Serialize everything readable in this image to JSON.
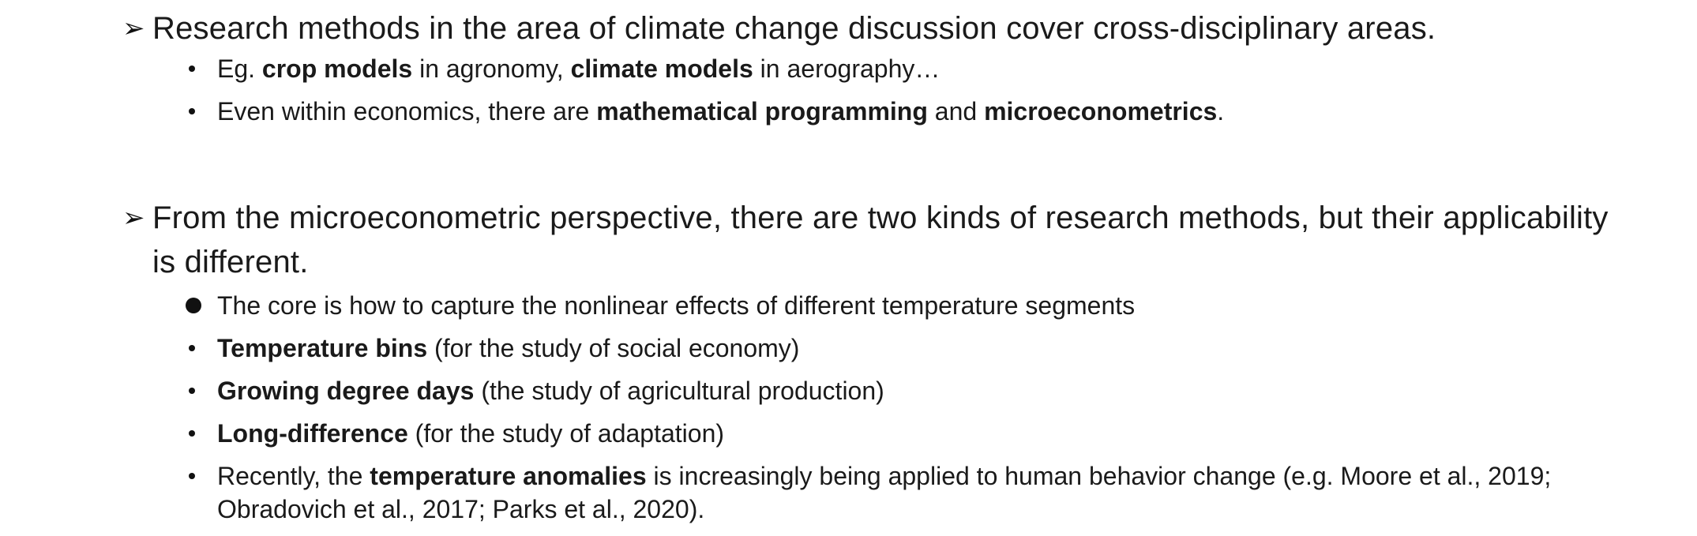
{
  "points": [
    {
      "text": "Research methods in the area of climate change discussion cover cross-disciplinary areas.",
      "subs": [
        {
          "parts": [
            {
              "t": "Eg. ",
              "b": false
            },
            {
              "t": "crop models",
              "b": true
            },
            {
              "t": " in agronomy, ",
              "b": false
            },
            {
              "t": "climate models",
              "b": true
            },
            {
              "t": " in aerography…",
              "b": false
            }
          ]
        },
        {
          "parts": [
            {
              "t": "Even within economics, there are ",
              "b": false
            },
            {
              "t": "mathematical programming",
              "b": true
            },
            {
              "t": " and ",
              "b": false
            },
            {
              "t": "microeconometrics",
              "b": true
            },
            {
              "t": ".",
              "b": false
            }
          ]
        }
      ]
    },
    {
      "text": "From the microeconometric perspective, there are two kinds of research methods, but their applicability is different.",
      "subs": [
        {
          "parts": [
            {
              "t": "The core is how to capture the nonlinear effects of different temperature segments",
              "b": false
            }
          ]
        },
        {
          "parts": [
            {
              "t": "Temperature bins",
              "b": true
            },
            {
              "t": " (for the study of social economy)",
              "b": false
            }
          ]
        },
        {
          "parts": [
            {
              "t": "Growing degree days",
              "b": true
            },
            {
              "t": " (the study of agricultural production)",
              "b": false
            }
          ]
        },
        {
          "parts": [
            {
              "t": "Long-difference",
              "b": true
            },
            {
              "t": " (for the study of adaptation)",
              "b": false
            }
          ]
        },
        {
          "parts": [
            {
              "t": "Recently, the ",
              "b": false
            },
            {
              "t": "temperature anomalies",
              "b": true
            },
            {
              "t": " is increasingly being applied to human behavior change (e.g. Moore et al., 2019; Obradovich et al., 2017; Parks et al., 2020).",
              "b": false
            }
          ]
        }
      ]
    }
  ]
}
